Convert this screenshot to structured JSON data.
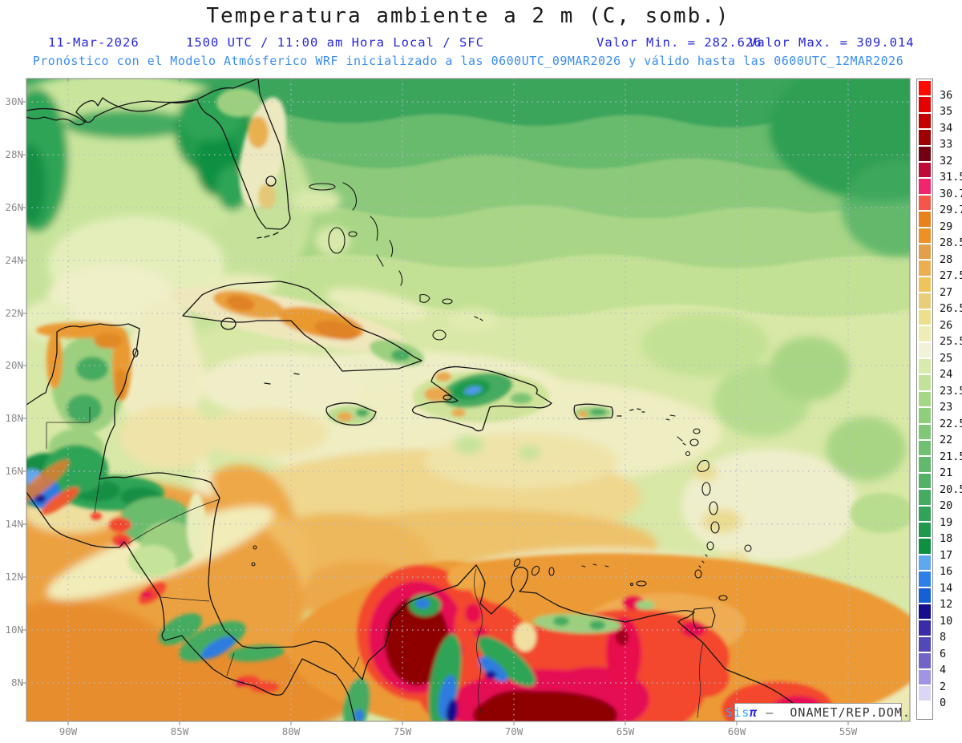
{
  "header": {
    "title": "Temperatura ambiente a 2 m (C, somb.)",
    "date": "11-Mar-2026",
    "time_line": "1500 UTC / 11:00 am Hora Local / SFC",
    "valor_min": "Valor Min. = 282.626",
    "valor_max": "Valor Max. = 309.014",
    "model_line": "Pronóstico con el Modelo Atmósferico WRF inicializado a las 0600UTC_09MAR2026 y válido hasta las  0600UTC_12MAR2026"
  },
  "axes": {
    "lat_labels": [
      "30N",
      "28N",
      "26N",
      "24N",
      "22N",
      "20N",
      "18N",
      "16N",
      "14N",
      "12N",
      "10N",
      "8N"
    ],
    "lon_labels": [
      "90W",
      "85W",
      "80W",
      "75W",
      "70W",
      "65W",
      "60W",
      "55W"
    ]
  },
  "colorbar": {
    "tick_labels": [
      "36",
      "35",
      "34",
      "33",
      "32",
      "31.5",
      "30.7",
      "29.7",
      "29",
      "28.5",
      "28",
      "27.5",
      "27",
      "26.5",
      "26",
      "25.5",
      "25",
      "24",
      "23.5",
      "23",
      "22.5",
      "22",
      "21.5",
      "21",
      "20.5",
      "20",
      "19",
      "18",
      "17",
      "16",
      "14",
      "12",
      "10",
      "8",
      "6",
      "4",
      "2",
      "0"
    ],
    "cell_colors": [
      "#FF0A00",
      "#E30000",
      "#C40000",
      "#9E0004",
      "#740112",
      "#BE0A36",
      "#F1256E",
      "#F5564A",
      "#E8821E",
      "#EE9025",
      "#E3A04A",
      "#EBAF52",
      "#F0C45C",
      "#E9CE79",
      "#EDE08C",
      "#EFEDB5",
      "#F2F2D9",
      "#D8EAAC",
      "#C2E29A",
      "#A5D787",
      "#8FCE7D",
      "#80C777",
      "#71C072",
      "#62B96C",
      "#54B267",
      "#45AB60",
      "#33A259",
      "#22984E",
      "#0E9043",
      "#5FA8EE",
      "#2F7FE8",
      "#1660D6",
      "#150D8C",
      "#3A2CA8",
      "#5348B8",
      "#7064C6",
      "#A095E2",
      "#DAD7F4",
      "#FFFFFF"
    ]
  },
  "attribution": {
    "brand_prefix": "Sis",
    "brand_pi": "π",
    "separator": "–",
    "org": "ONAMET/REP.DOM."
  },
  "theme": {
    "header_primary_blue": "#2626DD",
    "header_secondary_blue": "#3B8EF2",
    "title_color": "#1A1A1A",
    "axis_label_color": "#8A8A8A",
    "grid_color": "#B9B9CA"
  }
}
